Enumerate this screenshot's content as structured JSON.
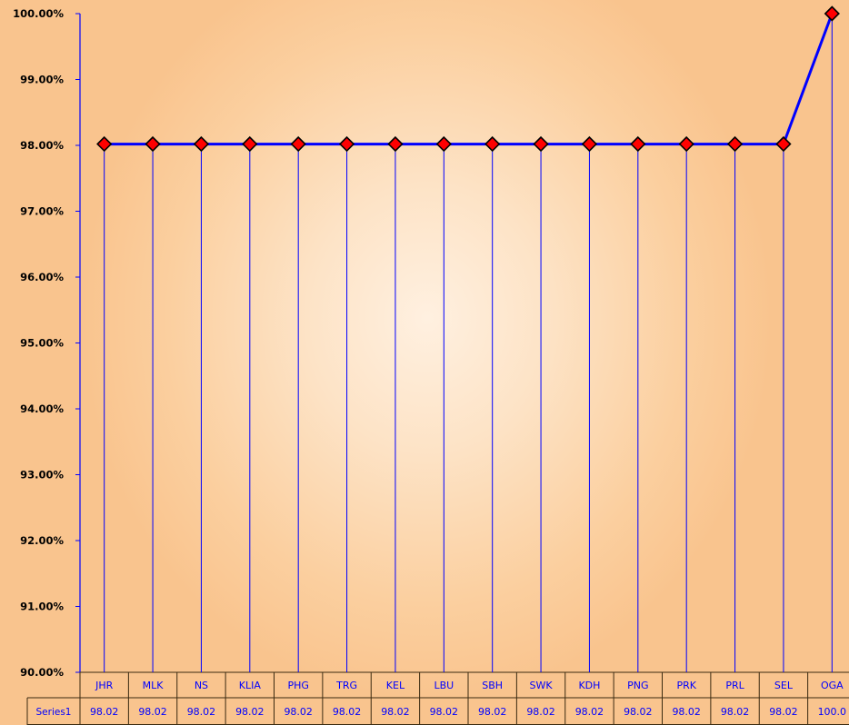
{
  "chart_data": {
    "type": "line",
    "categories": [
      "JHR",
      "MLK",
      "NS",
      "KLIA",
      "PHG",
      "TRG",
      "KEL",
      "LBU",
      "SBH",
      "SWK",
      "KDH",
      "PNG",
      "PRK",
      "PRL",
      "SEL",
      "OGA"
    ],
    "series": [
      {
        "name": "Series1",
        "values": [
          98.02,
          98.02,
          98.02,
          98.02,
          98.02,
          98.02,
          98.02,
          98.02,
          98.02,
          98.02,
          98.02,
          98.02,
          98.02,
          98.02,
          98.02,
          100.0
        ]
      }
    ],
    "table_values": [
      "98.02",
      "98.02",
      "98.02",
      "98.02",
      "98.02",
      "98.02",
      "98.02",
      "98.02",
      "98.02",
      "98.02",
      "98.02",
      "98.02",
      "98.02",
      "98.02",
      "98.02",
      "100.0"
    ],
    "y_tick_labels": [
      "90.00%",
      "91.00%",
      "92.00%",
      "93.00%",
      "94.00%",
      "95.00%",
      "96.00%",
      "97.00%",
      "98.00%",
      "99.00%",
      "100.00%"
    ],
    "ylim": [
      90,
      100
    ],
    "grid": false,
    "drop_lines": true,
    "data_table": true,
    "colors": {
      "line": "#0000ff",
      "marker_fill": "#ff0000",
      "marker_edge": "#000000",
      "axis_text": "#000000",
      "category_text": "#0000ff",
      "background_center": "#fff0e0",
      "background_edge": "#f9c48e"
    },
    "marker": "diamond"
  }
}
